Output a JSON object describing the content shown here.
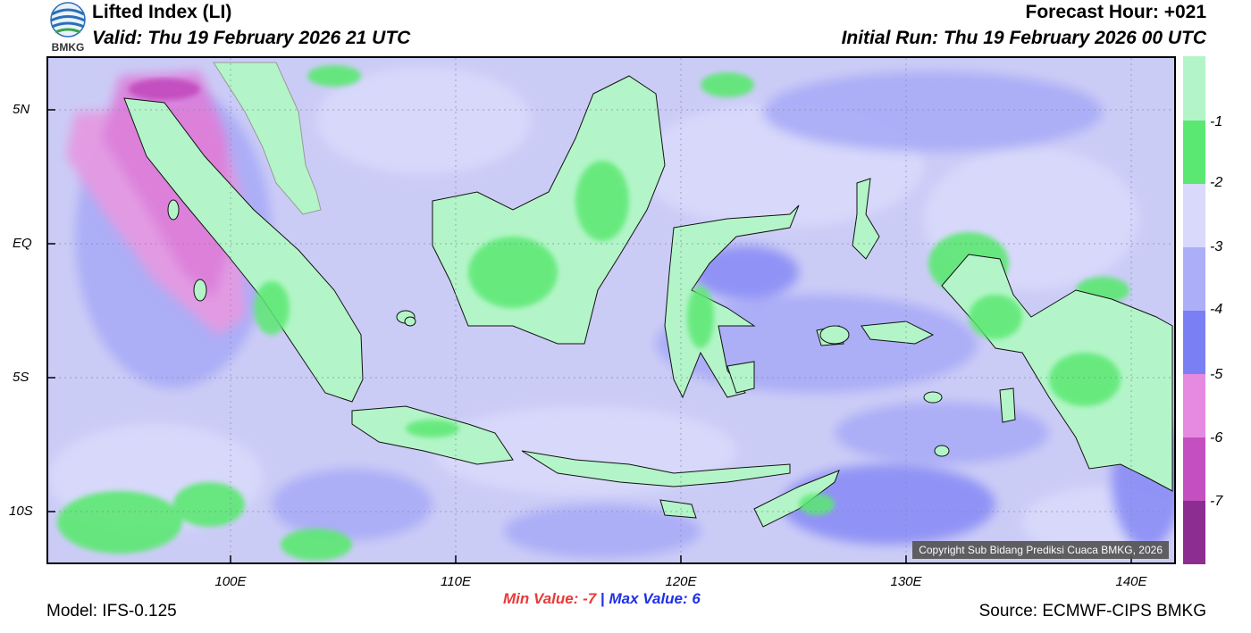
{
  "header": {
    "title": "Lifted Index (LI)",
    "valid": "Valid: Thu 19 February 2026 21 UTC",
    "forecast_hour": "Forecast Hour: +021",
    "initial_run": "Initial Run: Thu 19 February 2026 00 UTC",
    "logo_text": "BMKG"
  },
  "axes": {
    "y_labels": [
      "5N",
      "EQ",
      "5S",
      "10S"
    ],
    "x_labels": [
      "100E",
      "110E",
      "120E",
      "130E",
      "140E"
    ]
  },
  "legend": {
    "colors": [
      "#8c2d91",
      "#c44fc0",
      "#e58ae0",
      "#7b7ff4",
      "#acaef8",
      "#d8d9fb",
      "#5be872",
      "#b3f5c8"
    ],
    "labels": [
      "-1",
      "-2",
      "-3",
      "-4",
      "-5",
      "-6",
      "-7"
    ]
  },
  "stats": {
    "min_label": "Min Value:",
    "min_value": "-7",
    "separator": "|",
    "max_label": "Max Value:",
    "max_value": "6"
  },
  "footer": {
    "model": "Model: IFS-0.125",
    "source": "Source: ECMWF-CIPS BMKG",
    "copyright": "Copyright Sub Bidang Prediksi Cuaca BMKG, 2026"
  }
}
